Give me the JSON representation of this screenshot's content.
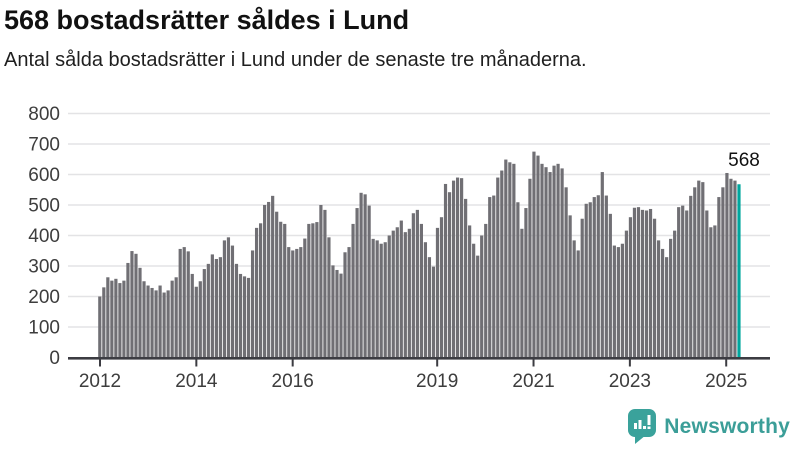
{
  "header": {
    "title": "568 bostadsrätter såldes i Lund",
    "subtitle": "Antal sålda bostadsrätter i Lund under de senaste tre månaderna."
  },
  "chart_data": {
    "type": "bar",
    "title": "568 bostadsrätter såldes i Lund",
    "subtitle": "Antal sålda bostadsrätter i Lund under de senaste tre månaderna.",
    "x_description": "Månadsvisa staplar, rullande tremånaderssummor, januari 2012 till 2025",
    "x_start": "2012-01",
    "x_end": "2025-04",
    "year_ticks": [
      2012,
      2014,
      2016,
      2019,
      2021,
      2023,
      2025
    ],
    "y_ticks": [
      0,
      100,
      200,
      300,
      400,
      500,
      600,
      700,
      800
    ],
    "ylim": [
      0,
      800
    ],
    "grid": true,
    "legend": false,
    "values": [
      200,
      230,
      263,
      252,
      258,
      244,
      252,
      310,
      349,
      340,
      294,
      250,
      236,
      228,
      220,
      236,
      213,
      220,
      252,
      263,
      356,
      362,
      348,
      274,
      232,
      250,
      290,
      307,
      338,
      323,
      329,
      384,
      394,
      367,
      307,
      274,
      266,
      261,
      351,
      425,
      440,
      500,
      510,
      530,
      478,
      445,
      438,
      362,
      351,
      356,
      362,
      390,
      438,
      440,
      444,
      500,
      484,
      394,
      302,
      287,
      275,
      345,
      362,
      438,
      490,
      540,
      535,
      498,
      389,
      384,
      373,
      378,
      400,
      416,
      427,
      449,
      411,
      422,
      473,
      484,
      438,
      378,
      329,
      298,
      425,
      460,
      569,
      542,
      580,
      590,
      588,
      520,
      433,
      373,
      334,
      400,
      438,
      526,
      531,
      590,
      613,
      649,
      640,
      635,
      509,
      422,
      490,
      586,
      675,
      662,
      635,
      624,
      608,
      629,
      635,
      620,
      558,
      466,
      384,
      351,
      455,
      504,
      509,
      526,
      532,
      608,
      531,
      471,
      367,
      362,
      373,
      416,
      460,
      491,
      493,
      484,
      482,
      487,
      455,
      384,
      356,
      329,
      389,
      416,
      493,
      498,
      482,
      530,
      558,
      580,
      575,
      482,
      427,
      433,
      526,
      558,
      605,
      586,
      580,
      568
    ],
    "highlight_last": true,
    "annotation": {
      "text": "568",
      "value": 568
    },
    "colors": {
      "bar": "#706f74",
      "highlight": "#00a69e",
      "gridline": "#e3e3e5",
      "axis": "#3c3c42",
      "tick_label": "#3d3d3d",
      "annotation": "#111111"
    }
  },
  "footer": {
    "brand": "Newsworthy",
    "brand_color": "#3b9e98"
  }
}
